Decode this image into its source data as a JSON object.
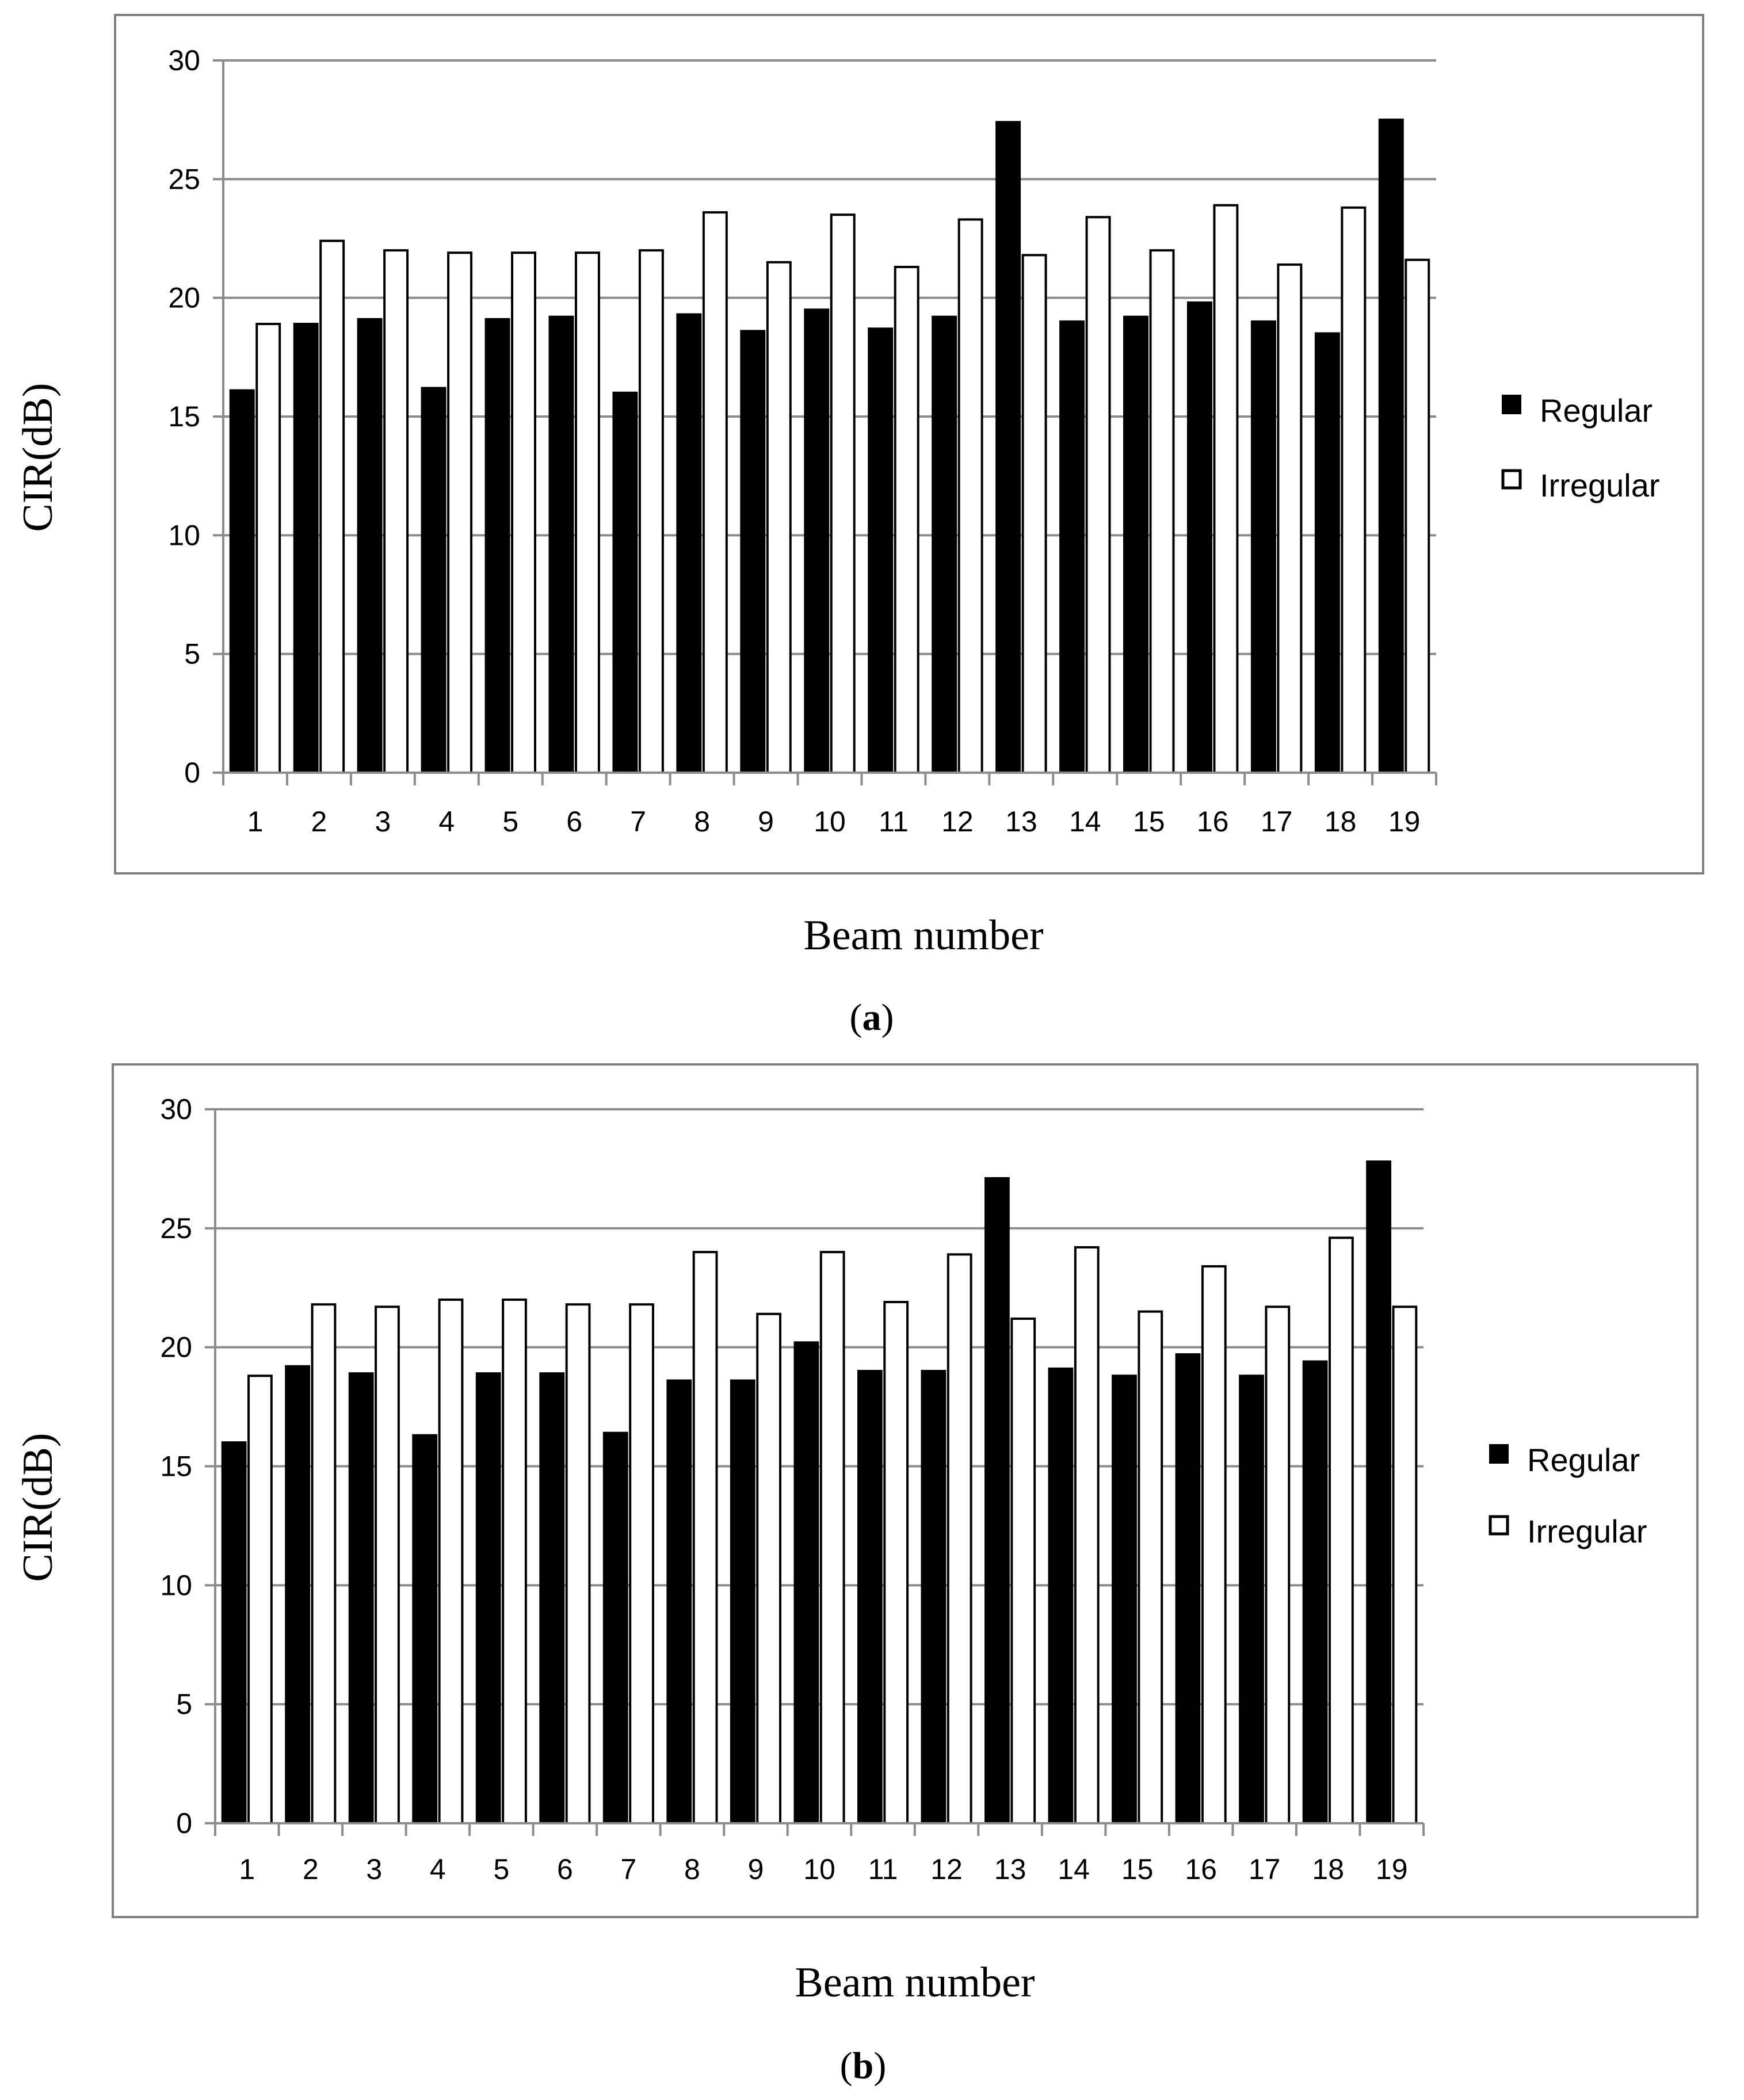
{
  "chart_data": [
    {
      "type": "bar",
      "caption": {
        "open": "(",
        "letter": "a",
        "close": ")"
      },
      "xlabel": "Beam number",
      "ylabel": "CIR(dB)",
      "ylim": [
        0,
        30
      ],
      "yticks": [
        "0",
        "5",
        "10",
        "15",
        "20",
        "25",
        "30"
      ],
      "grid": true,
      "legend_position": "right",
      "categories": [
        "1",
        "2",
        "3",
        "4",
        "5",
        "6",
        "7",
        "8",
        "9",
        "10",
        "11",
        "12",
        "13",
        "14",
        "15",
        "16",
        "17",
        "18",
        "19"
      ],
      "series": [
        {
          "name": "Regular",
          "color": "#000000",
          "values": [
            16.1,
            18.9,
            19.1,
            16.2,
            19.1,
            19.2,
            16.0,
            19.3,
            18.6,
            19.5,
            18.7,
            19.2,
            27.4,
            19.0,
            19.2,
            19.8,
            19.0,
            18.5,
            27.5
          ]
        },
        {
          "name": "Irregular",
          "color": "#ffffff",
          "values": [
            18.9,
            22.4,
            22.0,
            21.9,
            21.9,
            21.9,
            22.0,
            23.6,
            21.5,
            23.5,
            21.3,
            23.3,
            21.8,
            23.4,
            22.0,
            23.9,
            21.4,
            23.8,
            21.6
          ]
        }
      ]
    },
    {
      "type": "bar",
      "caption": {
        "open": "(",
        "letter": "b",
        "close": ")"
      },
      "xlabel": "Beam number",
      "ylabel": "CIR(dB)",
      "ylim": [
        0,
        30
      ],
      "yticks": [
        "0",
        "5",
        "10",
        "15",
        "20",
        "25",
        "30"
      ],
      "grid": true,
      "legend_position": "right",
      "categories": [
        "1",
        "2",
        "3",
        "4",
        "5",
        "6",
        "7",
        "8",
        "9",
        "10",
        "11",
        "12",
        "13",
        "14",
        "15",
        "16",
        "17",
        "18",
        "19"
      ],
      "series": [
        {
          "name": "Regular",
          "color": "#000000",
          "values": [
            16.0,
            19.2,
            18.9,
            16.3,
            18.9,
            18.9,
            16.4,
            18.6,
            18.6,
            20.2,
            19.0,
            19.0,
            27.1,
            19.1,
            18.8,
            19.7,
            18.8,
            19.4,
            27.8
          ]
        },
        {
          "name": "Irregular",
          "color": "#ffffff",
          "values": [
            18.8,
            21.8,
            21.7,
            22.0,
            22.0,
            21.8,
            21.8,
            24.0,
            21.4,
            24.0,
            21.9,
            23.9,
            21.2,
            24.2,
            21.5,
            23.4,
            21.7,
            24.6,
            21.7
          ]
        }
      ]
    }
  ]
}
